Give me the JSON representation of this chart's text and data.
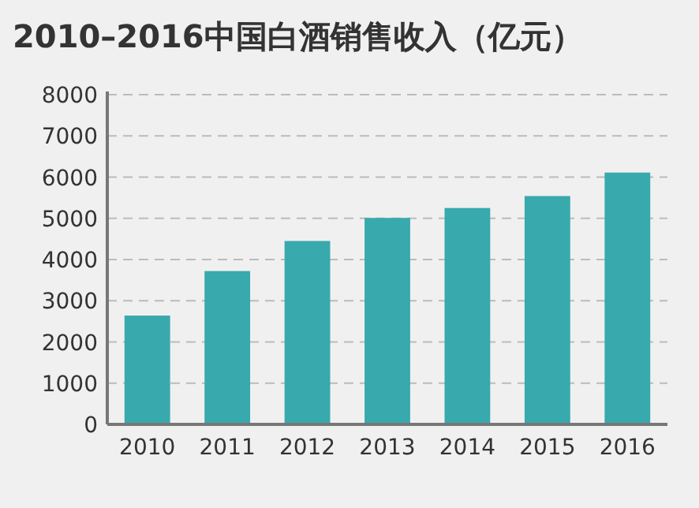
{
  "chart_data": {
    "type": "bar",
    "title": "2010–2016中国白酒销售收入（亿元）",
    "categories": [
      "2010",
      "2011",
      "2012",
      "2013",
      "2014",
      "2015",
      "2016"
    ],
    "values": [
      2640,
      3720,
      4450,
      5010,
      5250,
      5540,
      6110
    ],
    "color": "#38a9ad",
    "ylim": [
      0,
      8000
    ],
    "yticks": [
      0,
      1000,
      2000,
      3000,
      4000,
      5000,
      6000,
      7000,
      8000
    ],
    "grid": "y"
  }
}
